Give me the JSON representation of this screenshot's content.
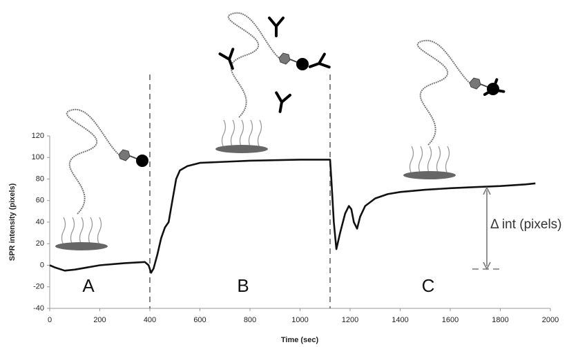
{
  "chart_data": {
    "type": "line",
    "xlabel": "Time (sec)",
    "ylabel": "SPR intensity (pixels)",
    "x": [
      0,
      20,
      60,
      100,
      200,
      300,
      380,
      395,
      405,
      415,
      430,
      445,
      460,
      475,
      490,
      505,
      520,
      550,
      600,
      700,
      800,
      900,
      1000,
      1100,
      1120,
      1125,
      1135,
      1145,
      1160,
      1180,
      1195,
      1205,
      1215,
      1228,
      1240,
      1260,
      1300,
      1350,
      1400,
      1500,
      1600,
      1700,
      1800,
      1900,
      1940
    ],
    "values": [
      0,
      -2,
      -5,
      -4,
      0,
      2,
      3,
      0,
      -7,
      -3,
      10,
      25,
      35,
      40,
      60,
      80,
      88,
      92,
      95,
      96,
      97,
      97.5,
      98,
      98,
      98,
      80,
      40,
      15,
      30,
      48,
      55,
      52,
      40,
      34,
      45,
      55,
      62,
      66,
      68,
      70,
      71.5,
      72.5,
      73.5,
      75,
      76
    ],
    "color": "#111111",
    "xlim": [
      0,
      2000
    ],
    "ylim": [
      -40,
      120
    ],
    "xticks": [
      0,
      200,
      400,
      600,
      800,
      1000,
      1200,
      1400,
      1600,
      1800,
      2000
    ],
    "yticks": [
      -40,
      -20,
      0,
      20,
      40,
      60,
      80,
      100,
      120
    ],
    "grid": false,
    "vlines": [
      400,
      1120
    ],
    "annotations": [
      "A",
      "B",
      "C",
      "Δ int (pixels)"
    ]
  }
}
